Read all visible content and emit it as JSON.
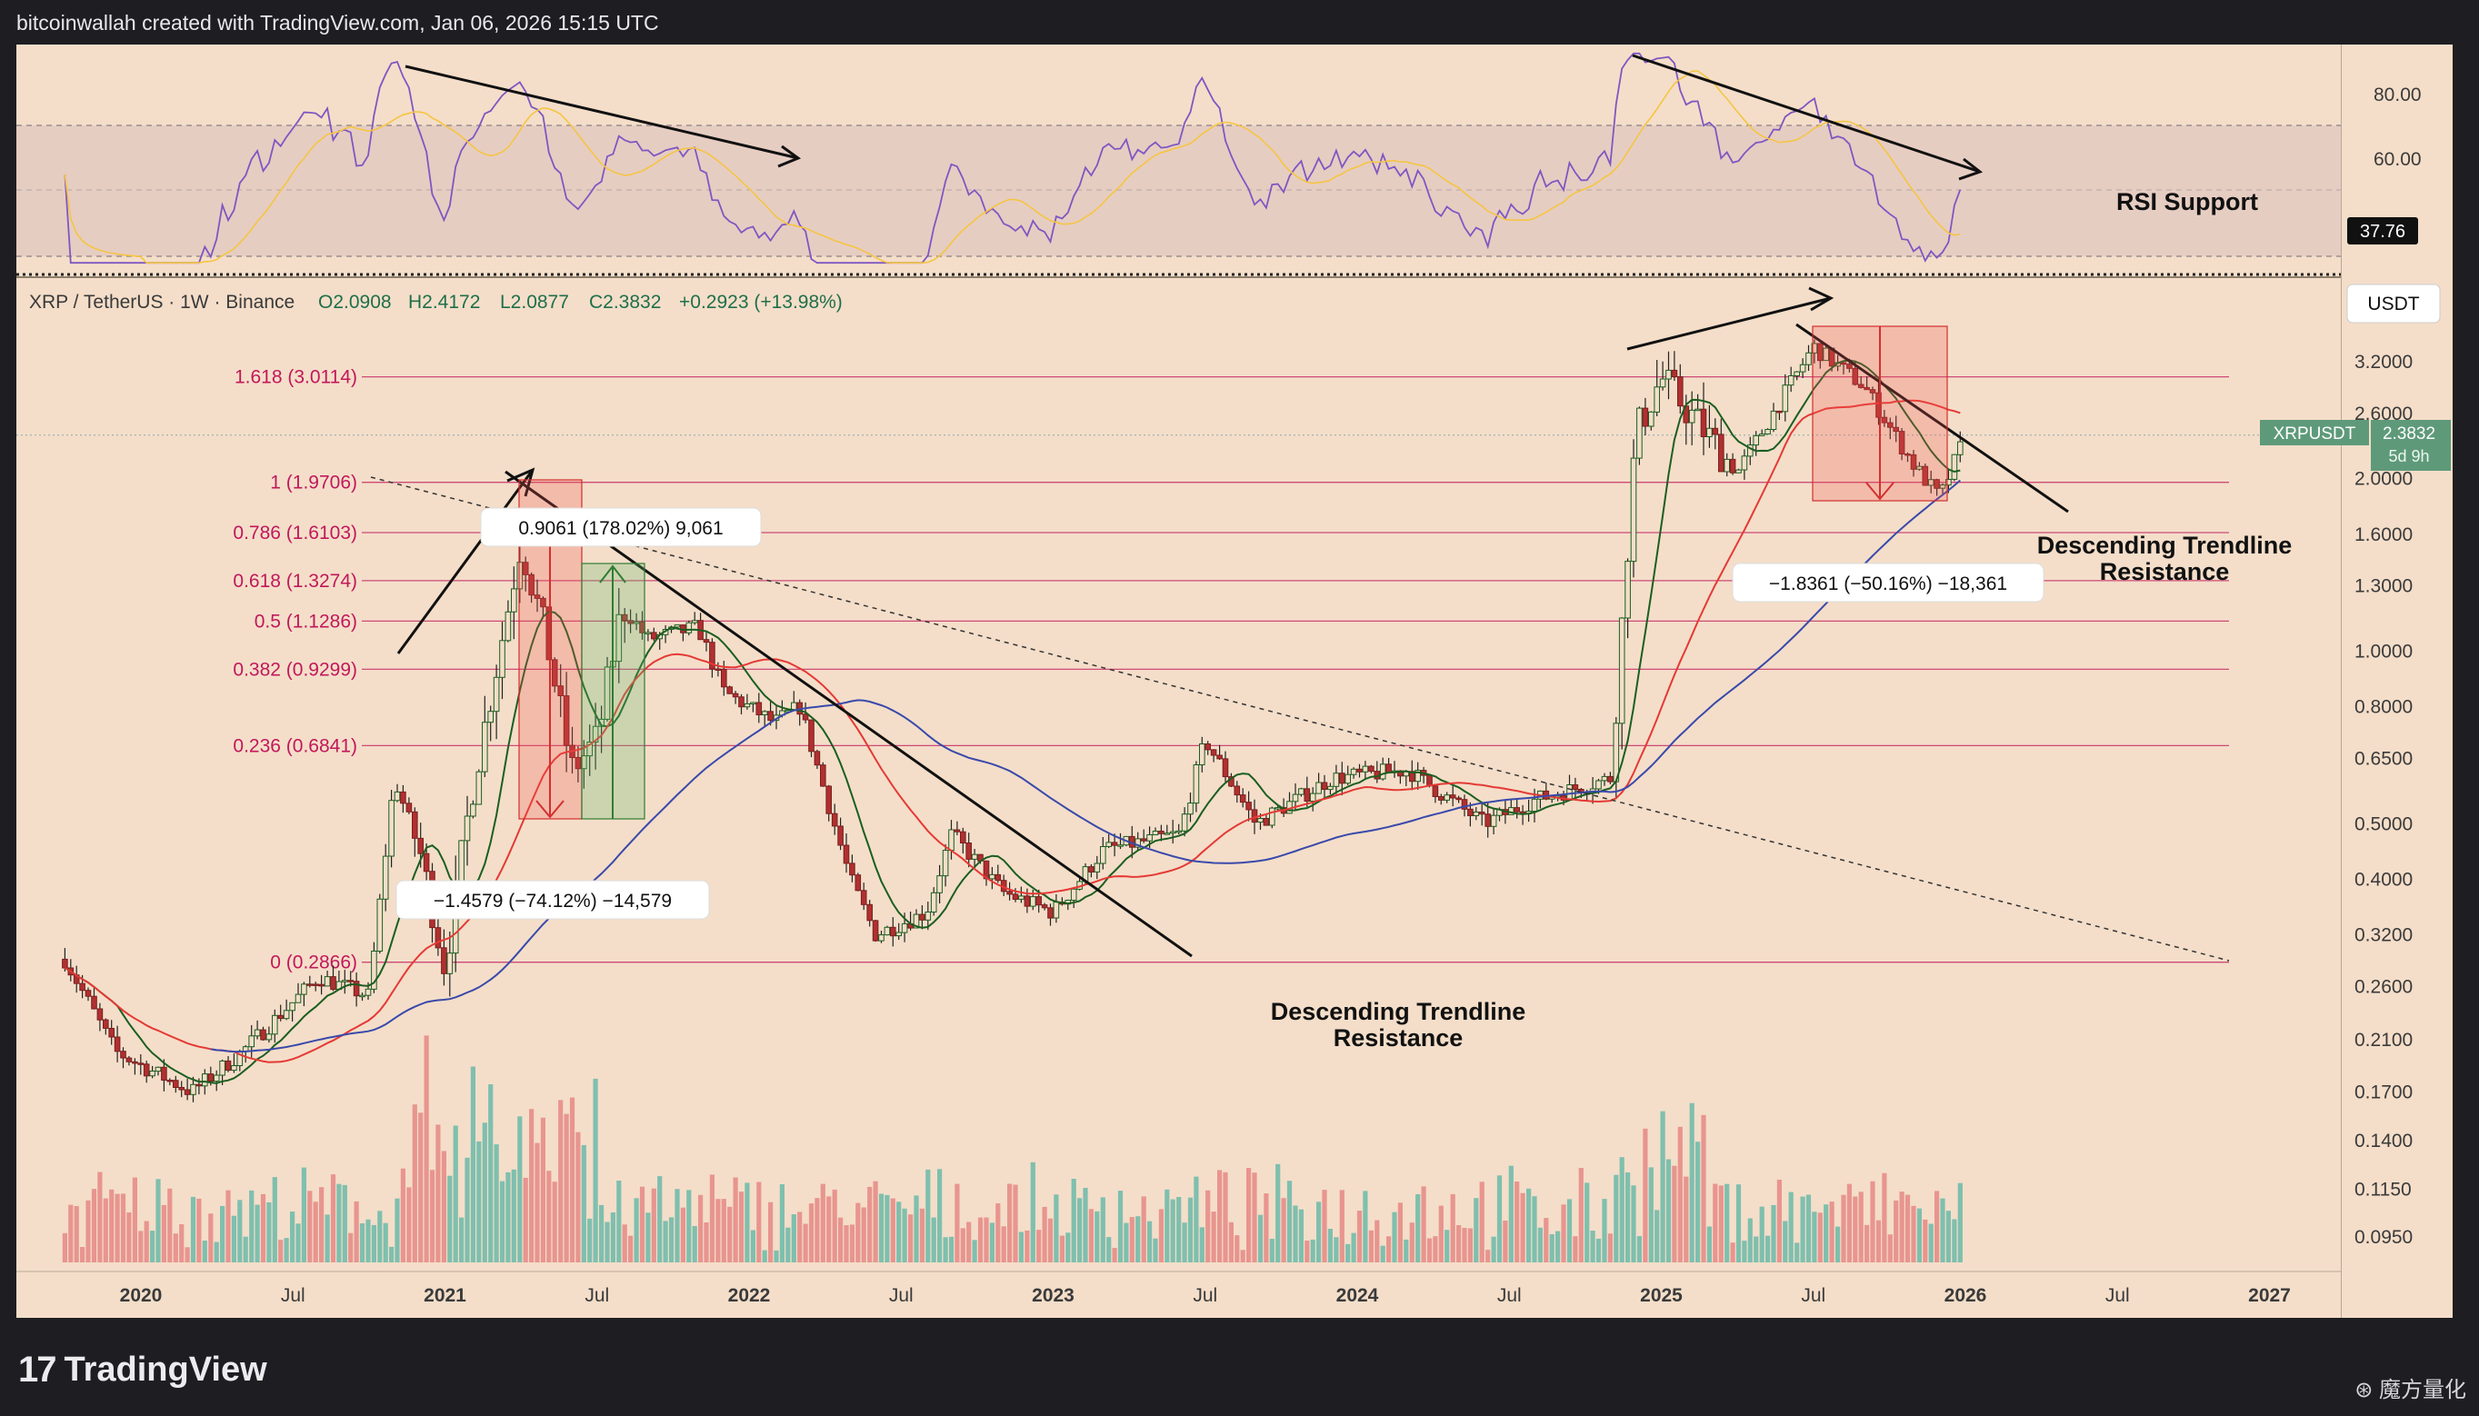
{
  "header": {
    "credit": "bitcoinwallah created with TradingView.com, Jan 06, 2026 15:15 UTC"
  },
  "legend": {
    "symbol": "XRP / TetherUS · 1W · Binance",
    "open": "O2.0908",
    "high": "H2.4172",
    "low": "L2.0877",
    "close": "C2.3832",
    "change": "+0.2923 (+13.98%)"
  },
  "currency_badge": "USDT",
  "price_tag": {
    "symbol": "XRPUSDT",
    "price": "2.3832",
    "countdown": "5d 9h"
  },
  "colors": {
    "bull": "#26a69a",
    "bear": "#ef5350",
    "fib": "#c2185b",
    "rsi": "#7e57c2",
    "rsi_ma": "#f5c542",
    "ma20": "#1b5e20",
    "ma50": "#e53935",
    "ma200": "#3949ab"
  },
  "rsi_panel": {
    "ticks": [
      "80.00",
      "60.00"
    ],
    "support_value": "37.76",
    "support_label": "RSI Support"
  },
  "annotations": {
    "trend1_line1": "Descending Trendline",
    "trend1_line2": "Resistance",
    "trend2_line1": "Descending Trendline",
    "trend2_line2": "Resistance",
    "box_up": "0.9061 (178.02%) 9,061",
    "box_down_2021": "−1.4579 (−74.12%) −14,579",
    "box_down_2025": "−1.8361 (−50.16%) −18,361"
  },
  "footer": {
    "brand": "TradingView",
    "watermark": "⊛ 魔方量化"
  },
  "chart_data": {
    "type": "candlestick",
    "title": "XRP / TetherUS · 1W · Binance",
    "y_scale": "log",
    "y_ticks": [
      "3.2000",
      "2.6000",
      "2.0000",
      "1.6000",
      "1.3000",
      "1.0000",
      "0.8000",
      "0.6500",
      "0.5000",
      "0.4000",
      "0.3200",
      "0.2600",
      "0.2100",
      "0.1700",
      "0.1400",
      "0.1150",
      "0.0950"
    ],
    "x_ticks": [
      "2020",
      "Jul",
      "2021",
      "Jul",
      "2022",
      "Jul",
      "2023",
      "Jul",
      "2024",
      "Jul",
      "2025",
      "Jul",
      "2026",
      "Jul",
      "2027"
    ],
    "fib_levels": [
      {
        "label": "1.618 (3.0114)",
        "value": 3.0114
      },
      {
        "label": "1 (1.9706)",
        "value": 1.9706
      },
      {
        "label": "0.786 (1.6103)",
        "value": 1.6103
      },
      {
        "label": "0.618 (1.3274)",
        "value": 1.3274
      },
      {
        "label": "0.5 (1.1286)",
        "value": 1.1286
      },
      {
        "label": "0.382 (0.9299)",
        "value": 0.9299
      },
      {
        "label": "0.236 (0.6841)",
        "value": 0.6841
      },
      {
        "label": "0 (0.2866)",
        "value": 0.2866
      }
    ],
    "price_path": [
      [
        "2019-10",
        0.29
      ],
      [
        "2019-12",
        0.2
      ],
      [
        "2020-03",
        0.17
      ],
      [
        "2020-05",
        0.2
      ],
      [
        "2020-08",
        0.27
      ],
      [
        "2020-10",
        0.25
      ],
      [
        "2020-11",
        0.6
      ],
      [
        "2020-12",
        0.45
      ],
      [
        "2021-01",
        0.28
      ],
      [
        "2021-02",
        0.55
      ],
      [
        "2021-04",
        1.55
      ],
      [
        "2021-05",
        1.05
      ],
      [
        "2021-06",
        0.62
      ],
      [
        "2021-07",
        0.7
      ],
      [
        "2021-08",
        1.2
      ],
      [
        "2021-09",
        1.05
      ],
      [
        "2021-11",
        1.1
      ],
      [
        "2021-12",
        0.85
      ],
      [
        "2022-02",
        0.75
      ],
      [
        "2022-03",
        0.8
      ],
      [
        "2022-05",
        0.4
      ],
      [
        "2022-06",
        0.32
      ],
      [
        "2022-08",
        0.35
      ],
      [
        "2022-09",
        0.48
      ],
      [
        "2022-11",
        0.38
      ],
      [
        "2023-01",
        0.35
      ],
      [
        "2023-03",
        0.45
      ],
      [
        "2023-06",
        0.48
      ],
      [
        "2023-07",
        0.7
      ],
      [
        "2023-09",
        0.5
      ],
      [
        "2023-12",
        0.6
      ],
      [
        "2024-03",
        0.62
      ],
      [
        "2024-06",
        0.5
      ],
      [
        "2024-08",
        0.55
      ],
      [
        "2024-11",
        0.6
      ],
      [
        "2024-12",
        2.4
      ],
      [
        "2025-01",
        3.0
      ],
      [
        "2025-04",
        2.05
      ],
      [
        "2025-07",
        3.4
      ],
      [
        "2025-09",
        2.9
      ],
      [
        "2025-11",
        2.1
      ],
      [
        "2025-12",
        1.85
      ],
      [
        "2026-01",
        2.3832
      ]
    ],
    "rsi_support": 37.76
  }
}
